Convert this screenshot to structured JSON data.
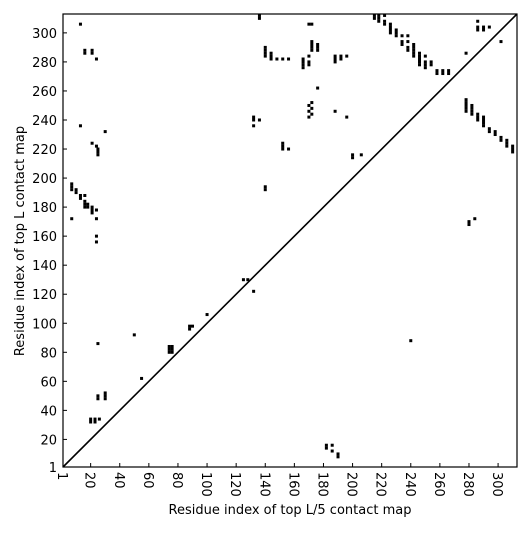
{
  "chart_data": {
    "type": "scatter",
    "xlabel": "Residue index of top L/5 contact map",
    "ylabel": "Residue index of top L contact map",
    "color": "#000000",
    "diagonal": true,
    "xlim": [
      1,
      313
    ],
    "ylim": [
      1,
      313
    ],
    "xticks": [
      1,
      20,
      40,
      60,
      80,
      100,
      120,
      140,
      160,
      180,
      200,
      220,
      240,
      260,
      280,
      300
    ],
    "yticks": [
      1,
      20,
      40,
      60,
      80,
      100,
      120,
      140,
      160,
      180,
      200,
      220,
      240,
      260,
      280,
      300
    ],
    "x": [
      7,
      7,
      7,
      7,
      10,
      10,
      13,
      13,
      13,
      13,
      16,
      16,
      16,
      16,
      16,
      16,
      18,
      18,
      21,
      21,
      21,
      21,
      21,
      21,
      24,
      24,
      24,
      24,
      24,
      24,
      25,
      25,
      25,
      25,
      25,
      25,
      30,
      30,
      30,
      30,
      20,
      20,
      23,
      23,
      26,
      50,
      55,
      74,
      74,
      74,
      76,
      76,
      76,
      88,
      88,
      90,
      100,
      125,
      128,
      132,
      132,
      132,
      132,
      136,
      136,
      136,
      140,
      140,
      140,
      140,
      140,
      140,
      144,
      144,
      144,
      148,
      152,
      152,
      152,
      152,
      156,
      156,
      166,
      166,
      166,
      166,
      170,
      170,
      170,
      170,
      170,
      170,
      170,
      172,
      172,
      172,
      172,
      172,
      172,
      172,
      172,
      176,
      176,
      176,
      176,
      188,
      188,
      188,
      188,
      192,
      192,
      196,
      196,
      200,
      200,
      206,
      215,
      215,
      218,
      218,
      218,
      222,
      222,
      222,
      226,
      226,
      226,
      226,
      230,
      230,
      230,
      234,
      234,
      234,
      238,
      238,
      238,
      238,
      242,
      242,
      242,
      242,
      242,
      246,
      246,
      246,
      246,
      246,
      250,
      250,
      250,
      250,
      254,
      254,
      258,
      258,
      262,
      262,
      266,
      266,
      240,
      278,
      278,
      278,
      278,
      278,
      278,
      282,
      282,
      282,
      282,
      286,
      286,
      286,
      286,
      286,
      286,
      290,
      290,
      290,
      290,
      290,
      290,
      294,
      294,
      294,
      298,
      298,
      302,
      302,
      302,
      306,
      306,
      306,
      310,
      310,
      310,
      280,
      280,
      284,
      182,
      182,
      186,
      186,
      190,
      190
    ],
    "y": [
      196,
      194,
      192,
      172,
      192,
      190,
      188,
      186,
      306,
      236,
      188,
      184,
      182,
      180,
      288,
      286,
      182,
      180,
      180,
      178,
      176,
      224,
      288,
      286,
      178,
      172,
      160,
      156,
      282,
      222,
      220,
      218,
      216,
      86,
      50,
      48,
      52,
      50,
      48,
      232,
      34,
      32,
      32,
      34,
      34,
      92,
      62,
      84,
      82,
      80,
      84,
      82,
      80,
      98,
      96,
      98,
      106,
      130,
      130,
      122,
      242,
      240,
      236,
      240,
      312,
      310,
      290,
      288,
      286,
      284,
      194,
      192,
      286,
      284,
      282,
      282,
      282,
      224,
      222,
      220,
      282,
      220,
      282,
      280,
      278,
      276,
      306,
      284,
      280,
      278,
      250,
      246,
      242,
      306,
      294,
      292,
      290,
      288,
      252,
      248,
      244,
      292,
      290,
      288,
      262,
      284,
      282,
      280,
      246,
      284,
      282,
      284,
      242,
      216,
      214,
      216,
      312,
      310,
      312,
      310,
      308,
      312,
      308,
      306,
      306,
      304,
      302,
      300,
      302,
      300,
      298,
      298,
      294,
      292,
      298,
      294,
      290,
      288,
      292,
      290,
      288,
      286,
      284,
      286,
      284,
      282,
      280,
      278,
      284,
      280,
      278,
      276,
      280,
      278,
      274,
      272,
      274,
      272,
      274,
      272,
      88,
      286,
      254,
      252,
      250,
      248,
      246,
      250,
      248,
      246,
      244,
      308,
      304,
      302,
      244,
      242,
      240,
      304,
      302,
      242,
      240,
      238,
      236,
      304,
      234,
      232,
      232,
      230,
      294,
      228,
      226,
      226,
      224,
      222,
      222,
      220,
      218,
      170,
      168,
      172,
      16,
      14,
      16,
      12,
      10,
      8
    ]
  }
}
